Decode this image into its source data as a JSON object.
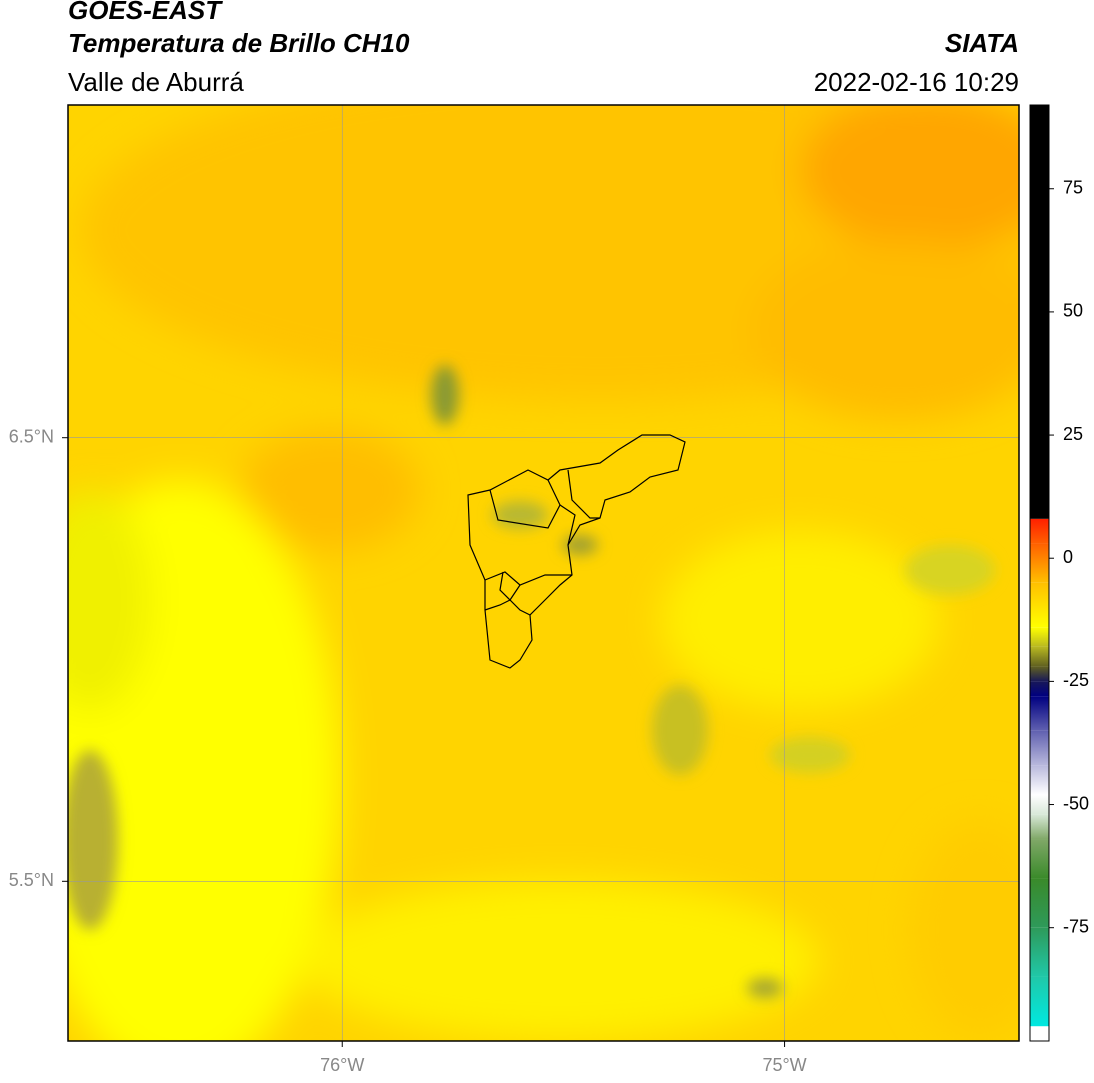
{
  "header": {
    "title": "GOES-EAST",
    "subtitle": "Temperatura de Brillo CH10",
    "region": "Valle de Aburrá",
    "source": "SIATA",
    "datetime": "2022-02-16 10:29"
  },
  "map": {
    "xlim": [
      -76.62,
      -74.47
    ],
    "ylim": [
      5.14,
      7.25
    ],
    "xticks": [
      {
        "value": -76,
        "label": "76°W"
      },
      {
        "value": -75,
        "label": "75°W"
      }
    ],
    "yticks": [
      {
        "value": 5.5,
        "label": "5.5°N"
      },
      {
        "value": 6.5,
        "label": "6.5°N"
      }
    ],
    "grid": true
  },
  "colorbar": {
    "lim": [
      -98,
      92
    ],
    "ticks": [
      -75,
      -50,
      -25,
      0,
      25,
      50,
      75
    ],
    "stops": [
      {
        "value": -98,
        "color": "#ffffff"
      },
      {
        "value": -95,
        "color": "#ffffff"
      },
      {
        "value": -95,
        "color": "#00e8e0"
      },
      {
        "value": -85,
        "color": "#20c8a8"
      },
      {
        "value": -75,
        "color": "#2e9a5a"
      },
      {
        "value": -65,
        "color": "#3a8a2a"
      },
      {
        "value": -57,
        "color": "#80a868"
      },
      {
        "value": -52,
        "color": "#d8e8d8"
      },
      {
        "value": -48,
        "color": "#ffffff"
      },
      {
        "value": -42,
        "color": "#b8b8dc"
      },
      {
        "value": -35,
        "color": "#6060b0"
      },
      {
        "value": -28,
        "color": "#000080"
      },
      {
        "value": -25,
        "color": "#181858"
      },
      {
        "value": -22,
        "color": "#606020"
      },
      {
        "value": -18,
        "color": "#b8b820"
      },
      {
        "value": -14,
        "color": "#ffff00"
      },
      {
        "value": -5,
        "color": "#ffc000"
      },
      {
        "value": 3,
        "color": "#ff6000"
      },
      {
        "value": 8,
        "color": "#ff2000"
      },
      {
        "value": 8,
        "color": "#000000"
      },
      {
        "value": 92,
        "color": "#000000"
      }
    ]
  }
}
